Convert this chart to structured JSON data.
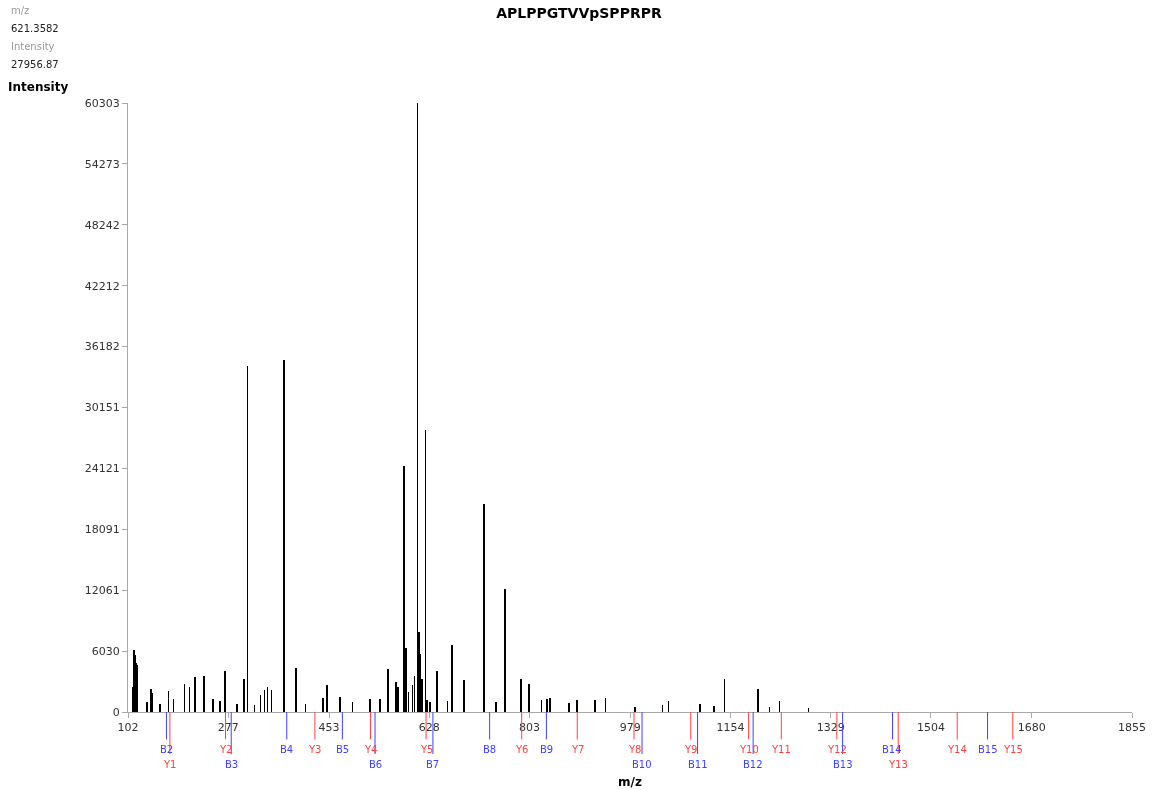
{
  "chart_data": {
    "type": "bar",
    "title": "APLPPGTVVpSPPRPR",
    "xlabel": "m/z",
    "ylabel": "Intensity",
    "annotations": [
      "m/z",
      "621.3582",
      "Intensity",
      "27956.87"
    ],
    "x": [
      110.6,
      112.4,
      114,
      115.8,
      117.5,
      134.8,
      141.7,
      143.4,
      157.3,
      172.8,
      181.4,
      200.4,
      209.1,
      219.4,
      235,
      250.5,
      262.6,
      271.2,
      292,
      304,
      310.5,
      323,
      333.4,
      340.3,
      345.5,
      352.4,
      374.9,
      395,
      412,
      442,
      449,
      471.6,
      494,
      525,
      542,
      556,
      570,
      573.5,
      584.4,
      587.3,
      592,
      598.9,
      602.3,
      607.7,
      610.5,
      611.9,
      614.9,
      621.3582,
      624.6,
      629.7,
      641.2,
      659.8,
      667.8,
      689,
      724,
      744.5,
      760,
      788.6,
      802.5,
      824,
      834,
      838.5,
      872,
      886,
      917,
      935.6,
      987,
      1035,
      1045.5,
      1101,
      1125.5,
      1143.4,
      1202,
      1222,
      1239.5,
      1290
    ],
    "values": [
      2500,
      6100,
      5600,
      4900,
      4700,
      1000,
      2300,
      1900,
      800,
      2100,
      1300,
      2800,
      2500,
      3500,
      3600,
      1300,
      1100,
      4100,
      800,
      3300,
      34300,
      700,
      1700,
      2200,
      2500,
      2200,
      34900,
      4400,
      800,
      1400,
      2700,
      1500,
      1000,
      1300,
      1300,
      4300,
      3000,
      2500,
      24400,
      6300,
      2000,
      2700,
      3600,
      60303,
      7900,
      5700,
      3300,
      27956.87,
      1200,
      1000,
      4100,
      1100,
      6600,
      3200,
      20600,
      1000,
      12200,
      3300,
      2800,
      1200,
      1300,
      1400,
      900,
      1200,
      1200,
      1400,
      500,
      700,
      1100,
      800,
      600,
      3300,
      2300,
      500,
      1100,
      400
    ],
    "color": "#000000",
    "xlim": [
      102,
      1855
    ],
    "xticks": [
      102,
      277,
      453,
      628,
      803,
      979,
      1154,
      1329,
      1504,
      1680,
      1855
    ],
    "ylim": [
      0,
      60303
    ],
    "yticks": [
      0,
      6030,
      12061,
      18091,
      24121,
      30151,
      36182,
      42212,
      48242,
      54273,
      60303
    ],
    "ref_lines": [
      {
        "axis": "x",
        "value": 169.1,
        "label": "B2",
        "color": "#4040ff"
      },
      {
        "axis": "x",
        "value": 175.1,
        "label": "Y1",
        "color": "#ff4040"
      },
      {
        "axis": "x",
        "value": 272.2,
        "label": "Y2",
        "color": "#ff4040"
      },
      {
        "axis": "x",
        "value": 282.2,
        "label": "B3",
        "color": "#4040ff"
      },
      {
        "axis": "x",
        "value": 379.2,
        "label": "B4",
        "color": "#4040ff"
      },
      {
        "axis": "x",
        "value": 428.3,
        "label": "Y3",
        "color": "#ff4040"
      },
      {
        "axis": "x",
        "value": 476.3,
        "label": "B5",
        "color": "#4040ff"
      },
      {
        "axis": "x",
        "value": 525.3,
        "label": "Y4",
        "color": "#ff4040"
      },
      {
        "axis": "x",
        "value": 533.3,
        "label": "B6",
        "color": "#4040ff"
      },
      {
        "axis": "x",
        "value": 622.4,
        "label": "Y5",
        "color": "#ff4040"
      },
      {
        "axis": "x",
        "value": 634.4,
        "label": "B7",
        "color": "#4040ff"
      },
      {
        "axis": "x",
        "value": 733.4,
        "label": "B8",
        "color": "#4040ff"
      },
      {
        "axis": "x",
        "value": 789.4,
        "label": "Y6",
        "color": "#ff4040"
      },
      {
        "axis": "x",
        "value": 832.5,
        "label": "B9",
        "color": "#4040ff"
      },
      {
        "axis": "x",
        "value": 886.4,
        "label": "Y7",
        "color": "#ff4040"
      },
      {
        "axis": "x",
        "value": 985.5,
        "label": "Y8",
        "color": "#ff4040"
      },
      {
        "axis": "x",
        "value": 999.5,
        "label": "B10",
        "color": "#4040ff"
      },
      {
        "axis": "x",
        "value": 1084.6,
        "label": "Y9",
        "color": "#ff4040"
      },
      {
        "axis": "x",
        "value": 1096.5,
        "label": "B11",
        "color": "#4040ff"
      },
      {
        "axis": "x",
        "value": 1185.6,
        "label": "Y10",
        "color": "#ff4040"
      },
      {
        "axis": "x",
        "value": 1193.5,
        "label": "B12",
        "color": "#4040ff"
      },
      {
        "axis": "x",
        "value": 1242.7,
        "label": "Y11",
        "color": "#ff4040"
      },
      {
        "axis": "x",
        "value": 1339.7,
        "label": "Y12",
        "color": "#ff4040"
      },
      {
        "axis": "x",
        "value": 1349.7,
        "label": "B13",
        "color": "#4040ff"
      },
      {
        "axis": "x",
        "value": 1436.8,
        "label": "B14",
        "color": "#4040ff"
      },
      {
        "axis": "x",
        "value": 1446.8,
        "label": "Y13",
        "color": "#ff4040"
      },
      {
        "axis": "x",
        "value": 1549.8,
        "label": "Y14",
        "color": "#ff4040"
      },
      {
        "axis": "x",
        "value": 1602.8,
        "label": "B15",
        "color": "#4040ff"
      },
      {
        "axis": "x",
        "value": 1646.9,
        "label": "Y15",
        "color": "#ff4040"
      }
    ]
  }
}
